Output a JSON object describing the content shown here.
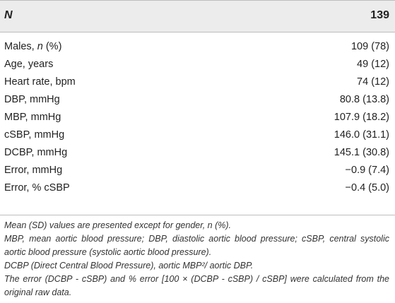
{
  "header": {
    "label": "N",
    "value": "139"
  },
  "rows": [
    {
      "label_plain": "Males, ",
      "label_italic": "n",
      "label_suffix": " (%)",
      "value": "109 (78)"
    },
    {
      "label_plain": "Age, years",
      "label_italic": "",
      "label_suffix": "",
      "value": "49 (12)"
    },
    {
      "label_plain": "Heart rate, bpm",
      "label_italic": "",
      "label_suffix": "",
      "value": "74 (12)"
    },
    {
      "label_plain": "DBP, mmHg",
      "label_italic": "",
      "label_suffix": "",
      "value": "80.8 (13.8)"
    },
    {
      "label_plain": "MBP, mmHg",
      "label_italic": "",
      "label_suffix": "",
      "value": "107.9 (18.2)"
    },
    {
      "label_plain": "cSBP, mmHg",
      "label_italic": "",
      "label_suffix": "",
      "value": "146.0 (31.1)"
    },
    {
      "label_plain": "DCBP, mmHg",
      "label_italic": "",
      "label_suffix": "",
      "value": "145.1 (30.8)"
    },
    {
      "label_plain": "Error, mmHg",
      "label_italic": "",
      "label_suffix": "",
      "value": "−0.9 (7.4)"
    },
    {
      "label_plain": "Error, % cSBP",
      "label_italic": "",
      "label_suffix": "",
      "value": "−0.4 (5.0)"
    }
  ],
  "notes": [
    "Mean (SD) values are presented except for gender, n (%).",
    "MBP, mean aortic blood pressure; DBP, diastolic aortic blood pressure; cSBP, central systolic aortic blood pressure (systolic aortic blood pressure).",
    "DCBP (Direct Central Blood Pressure), aortic MBP²/ aortic DBP.",
    "The error (DCBP - cSBP) and % error [100 × (DCBP - cSBP) / cSBP] were calculated from the original raw data."
  ]
}
